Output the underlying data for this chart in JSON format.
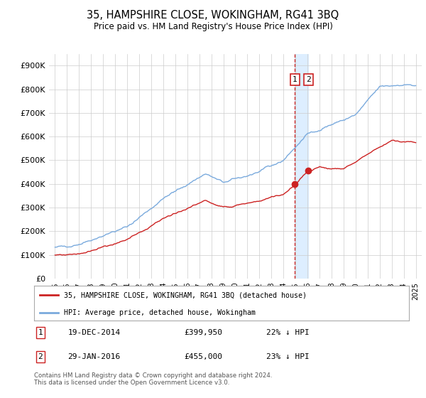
{
  "title": "35, HAMPSHIRE CLOSE, WOKINGHAM, RG41 3BQ",
  "subtitle": "Price paid vs. HM Land Registry's House Price Index (HPI)",
  "hpi_color": "#7aaadd",
  "price_color": "#cc2222",
  "highlight_color": "#ddeeff",
  "legend1": "35, HAMPSHIRE CLOSE, WOKINGHAM, RG41 3BQ (detached house)",
  "legend2": "HPI: Average price, detached house, Wokingham",
  "footnote": "Contains HM Land Registry data © Crown copyright and database right 2024.\nThis data is licensed under the Open Government Licence v3.0.",
  "ylim": [
    0,
    950000
  ],
  "yticks": [
    0,
    100000,
    200000,
    300000,
    400000,
    500000,
    600000,
    700000,
    800000,
    900000
  ],
  "ytick_labels": [
    "£0",
    "£100K",
    "£200K",
    "£300K",
    "£400K",
    "£500K",
    "£600K",
    "£700K",
    "£800K",
    "£900K"
  ],
  "m1_year": 2014.96,
  "m2_year": 2016.08,
  "m1_price": 399950,
  "m2_price": 455000,
  "m1_date": "19-DEC-2014",
  "m2_date": "29-JAN-2016",
  "m1_pct": "22% ↓ HPI",
  "m2_pct": "23% ↓ HPI"
}
